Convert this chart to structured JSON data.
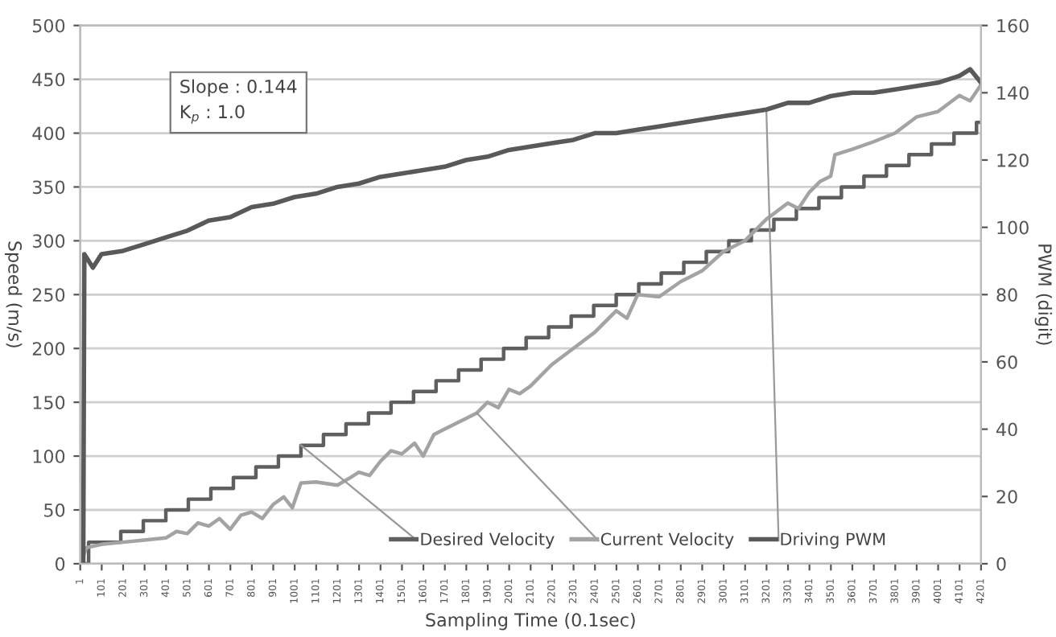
{
  "chart_data": {
    "type": "line",
    "xlabel": "Sampling Time (0.1sec)",
    "ylabel": "Speed (m/s)",
    "y2label": "PWM (digit)",
    "annotations": [
      "Slope : 0.144\nK$_{p}$ : 1.0"
    ],
    "xlim": [
      1,
      4201
    ],
    "xticks": [
      1,
      101,
      201,
      301,
      401,
      501,
      601,
      701,
      801,
      901,
      1001,
      1101,
      1201,
      1301,
      1401,
      1501,
      1601,
      1701,
      1801,
      1901,
      2001,
      2101,
      2201,
      2301,
      2401,
      2501,
      2601,
      2701,
      2801,
      2901,
      3001,
      3101,
      3201,
      3301,
      3401,
      3501,
      3601,
      3701,
      3801,
      3901,
      4001,
      4101,
      4201
    ],
    "ylim": [
      0,
      500
    ],
    "yticks": [
      0,
      50,
      100,
      150,
      200,
      250,
      300,
      350,
      400,
      450,
      500
    ],
    "y2lim": [
      0,
      160
    ],
    "y2ticks": [
      0,
      20,
      40,
      60,
      80,
      100,
      120,
      140,
      160
    ],
    "grid": "y",
    "legend": "bottom",
    "series": [
      {
        "name": "Desired Velocity",
        "type": "step",
        "color": "#5f5f5f",
        "x": [
          1,
          40,
          190,
          295,
          400,
          505,
          610,
          715,
          820,
          925,
          1030,
          1135,
          1240,
          1345,
          1450,
          1555,
          1660,
          1765,
          1870,
          1975,
          2080,
          2185,
          2290,
          2395,
          2500,
          2605,
          2710,
          2815,
          2920,
          3025,
          3130,
          3235,
          3340,
          3445,
          3550,
          3655,
          3760,
          3865,
          3970,
          4075,
          4180,
          4201
        ],
        "values": [
          0,
          20,
          30,
          40,
          50,
          60,
          70,
          80,
          90,
          100,
          110,
          120,
          130,
          140,
          150,
          160,
          170,
          180,
          190,
          200,
          210,
          220,
          230,
          240,
          250,
          260,
          270,
          280,
          290,
          300,
          310,
          320,
          330,
          340,
          350,
          360,
          370,
          380,
          390,
          400,
          410,
          410
        ]
      },
      {
        "name": "Current Velocity",
        "color": "#a3a3a3",
        "x": [
          1,
          30,
          100,
          200,
          300,
          400,
          450,
          500,
          550,
          600,
          650,
          700,
          750,
          800,
          850,
          900,
          950,
          990,
          1030,
          1100,
          1200,
          1260,
          1300,
          1350,
          1400,
          1450,
          1500,
          1560,
          1600,
          1650,
          1700,
          1800,
          1850,
          1900,
          1950,
          2000,
          2050,
          2100,
          2150,
          2200,
          2300,
          2400,
          2500,
          2550,
          2600,
          2700,
          2800,
          2900,
          3000,
          3100,
          3200,
          3300,
          3350,
          3400,
          3450,
          3500,
          3520,
          3600,
          3700,
          3800,
          3900,
          4000,
          4100,
          4150,
          4201
        ],
        "values": [
          0,
          15,
          18,
          20,
          22,
          24,
          30,
          28,
          38,
          35,
          42,
          32,
          45,
          48,
          42,
          55,
          62,
          52,
          75,
          76,
          73,
          80,
          85,
          82,
          95,
          105,
          102,
          112,
          100,
          120,
          125,
          135,
          140,
          150,
          145,
          162,
          158,
          165,
          175,
          185,
          200,
          215,
          235,
          228,
          250,
          248,
          262,
          272,
          290,
          300,
          320,
          335,
          330,
          345,
          355,
          360,
          380,
          385,
          392,
          400,
          415,
          420,
          435,
          430,
          445
        ]
      },
      {
        "name": "Driving PWM",
        "axis": "y2",
        "color": "#595959",
        "x": [
          1,
          15,
          20,
          60,
          100,
          200,
          300,
          400,
          500,
          600,
          700,
          800,
          900,
          1000,
          1100,
          1200,
          1300,
          1400,
          1500,
          1600,
          1700,
          1800,
          1900,
          2000,
          2100,
          2200,
          2300,
          2400,
          2500,
          2600,
          2700,
          2800,
          2900,
          3000,
          3100,
          3200,
          3300,
          3400,
          3500,
          3600,
          3700,
          3800,
          3900,
          4000,
          4100,
          4150,
          4201
        ],
        "values": [
          0,
          0,
          92,
          88,
          92,
          93,
          95,
          97,
          99,
          102,
          103,
          106,
          107,
          109,
          110,
          112,
          113,
          115,
          116,
          117,
          118,
          120,
          121,
          123,
          124,
          125,
          126,
          128,
          128,
          129,
          130,
          131,
          132,
          133,
          134,
          135,
          137,
          137,
          139,
          140,
          140,
          141,
          142,
          143,
          145,
          147,
          143
        ]
      }
    ]
  }
}
